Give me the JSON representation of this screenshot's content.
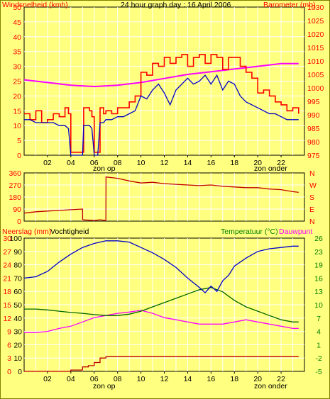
{
  "colors": {
    "background": "#FFFF80",
    "plot_bg": "#FFFF80",
    "grid": "#FFFFFF",
    "frame": "#000000",
    "wind_gust": "#FF0000",
    "wind_avg": "#0000C8",
    "barometer": "#FF00FF",
    "wind_dir": "#C00000",
    "rain": "#C00000",
    "humidity": "#0000C8",
    "temperature": "#006400",
    "dewpoint": "#FF00FF",
    "label_red": "#FF0000",
    "label_green": "#008000",
    "label_dark": "#000000"
  },
  "panel1": {
    "title": "24 hour graph day : 16 April 2006",
    "left_label": "Windsnelheid (kmh)",
    "right_label": "Barometer (mb)",
    "left_ticks": [
      "0",
      "5",
      "10",
      "15",
      "20",
      "25",
      "30",
      "35",
      "40",
      "45",
      "50"
    ],
    "right_ticks": [
      "975",
      "980",
      "985",
      "990",
      "995",
      "1000",
      "1005",
      "1010",
      "1015",
      "1020",
      "1025",
      "1030"
    ],
    "x_ticks": [
      "02",
      "04",
      "06",
      "08",
      "10",
      "12",
      "14",
      "16",
      "18",
      "20",
      "22"
    ],
    "sunrise_label": "zon op",
    "sunset_label": "zon onder"
  },
  "panel2": {
    "left_ticks": [
      "0",
      "90",
      "180",
      "270",
      "360"
    ],
    "compass": [
      "N",
      "W",
      "S",
      "E",
      "N"
    ]
  },
  "panel3": {
    "left_label_rain": "Neerslag (mm)",
    "left_label_hum": "Vochtigheid",
    "right_label_temp": "Temperatuur (°C)",
    "right_label_dew": "Dauwpunt",
    "rain_ticks": [
      "0",
      "3",
      "6",
      "9",
      "12",
      "15",
      "18",
      "21",
      "24",
      "27",
      "30"
    ],
    "hum_ticks": [
      "0",
      "10",
      "20",
      "30",
      "40",
      "50",
      "60",
      "70",
      "80",
      "90",
      "100"
    ],
    "right_ticks": [
      "-5",
      "-2",
      "1",
      "4",
      "7",
      "10",
      "13",
      "16",
      "19",
      "23",
      "26"
    ],
    "x_ticks": [
      "02",
      "04",
      "06",
      "08",
      "10",
      "12",
      "14",
      "16",
      "18",
      "20",
      "22"
    ],
    "sunrise_label": "zon op",
    "sunset_label": "zon onder"
  },
  "chart_data": [
    {
      "type": "line",
      "title": "24 hour graph day : 16 April 2006",
      "x_unit": "hour of day",
      "xlim": [
        0,
        24
      ],
      "ylabel": "Windsnelheid (kmh)",
      "ylim": [
        0,
        50
      ],
      "y2label": "Barometer (mb)",
      "y2lim": [
        975,
        1030
      ],
      "sunrise_hour": 6.5,
      "sunset_hour": 20.8,
      "series": [
        {
          "name": "wind gust",
          "axis": "left",
          "x": [
            0,
            0.5,
            1,
            1.5,
            2,
            2.5,
            3,
            3.5,
            3.8,
            4,
            5,
            5.1,
            5.6,
            5.8,
            6,
            6.3,
            6.5,
            6.8,
            7,
            7.5,
            8,
            8.5,
            9,
            9.5,
            10,
            10.5,
            11,
            11.5,
            12,
            12.5,
            13,
            13.5,
            14,
            14.5,
            15,
            15.5,
            16,
            16.5,
            17,
            17.5,
            18,
            18.5,
            19,
            19.5,
            20,
            20.5,
            21,
            21.5,
            22,
            22.5,
            23,
            23.5
          ],
          "values": [
            14,
            12,
            15,
            11,
            12,
            14,
            13,
            16,
            14,
            1,
            1,
            16,
            15,
            13,
            1,
            1,
            16,
            14,
            15,
            14,
            16,
            16,
            18,
            20,
            28,
            27,
            31,
            30,
            33,
            31,
            33,
            34,
            30,
            33,
            34,
            31,
            34,
            33,
            29,
            33,
            33,
            30,
            28,
            26,
            21,
            22,
            20,
            18,
            17,
            15,
            16,
            14
          ]
        },
        {
          "name": "wind avg",
          "axis": "left",
          "x": [
            0,
            0.5,
            1,
            1.5,
            2,
            2.5,
            3,
            3.5,
            3.8,
            4,
            5,
            5.1,
            5.6,
            5.8,
            6,
            6.3,
            6.5,
            6.8,
            7,
            7.5,
            8,
            8.5,
            9,
            9.5,
            10,
            10.5,
            11,
            11.5,
            12,
            12.5,
            13,
            13.5,
            14,
            14.5,
            15,
            15.5,
            16,
            16.5,
            17,
            17.5,
            18,
            18.5,
            19,
            19.5,
            20,
            20.5,
            21,
            21.5,
            22,
            22.5,
            23,
            23.5
          ],
          "values": [
            12,
            12,
            11,
            11,
            11,
            11,
            10,
            10,
            9,
            0,
            0,
            10,
            10,
            9,
            0,
            0,
            11,
            11,
            12,
            12,
            13,
            13,
            14,
            15,
            20,
            19,
            22,
            24,
            21,
            17,
            22,
            24,
            26,
            24,
            25,
            27,
            24,
            27,
            22,
            25,
            24,
            20,
            18,
            17,
            16,
            15,
            14,
            14,
            13,
            12,
            12,
            12
          ]
        },
        {
          "name": "barometer",
          "axis": "right",
          "x": [
            0,
            2,
            4,
            6,
            8,
            10,
            12,
            14,
            16,
            18,
            20,
            22,
            23.5
          ],
          "values": [
            1003,
            1002,
            1001,
            1000.5,
            1001,
            1002,
            1003.5,
            1005,
            1006,
            1007,
            1008,
            1009,
            1009
          ]
        }
      ]
    },
    {
      "type": "line",
      "x_unit": "hour of day",
      "xlim": [
        0,
        24
      ],
      "ylabel": "wind direction (degrees)",
      "ylim": [
        0,
        360
      ],
      "series": [
        {
          "name": "wind direction",
          "x": [
            0,
            1,
            2,
            3,
            4,
            5,
            5.01,
            6,
            6.5,
            7,
            7.01,
            8,
            9,
            10,
            11,
            12,
            13,
            14,
            15,
            16,
            17,
            18,
            19,
            20,
            21,
            22,
            23,
            23.5
          ],
          "values": [
            60,
            70,
            75,
            80,
            85,
            90,
            10,
            5,
            10,
            5,
            330,
            320,
            300,
            285,
            290,
            280,
            275,
            270,
            265,
            270,
            260,
            255,
            250,
            250,
            240,
            235,
            220,
            215
          ]
        }
      ]
    },
    {
      "type": "line",
      "x_unit": "hour of day",
      "xlim": [
        0,
        24
      ],
      "ylabel": "Neerslag (mm) / Vochtigheid",
      "ylim_rain": [
        0,
        30
      ],
      "ylim_hum": [
        0,
        100
      ],
      "y2label": "Temperatuur (°C) / Dauwpunt",
      "y2lim": [
        -5,
        26
      ],
      "sunrise_hour": 6.5,
      "sunset_hour": 20.8,
      "series": [
        {
          "name": "Vochtigheid",
          "axis": "left-humidity",
          "x": [
            0,
            1,
            2,
            3,
            4,
            5,
            6,
            7,
            8,
            9,
            10,
            11,
            12,
            13,
            14,
            15,
            15.5,
            16,
            16.5,
            17,
            17.5,
            18,
            19,
            20,
            21,
            22,
            23,
            23.5
          ],
          "values": [
            70,
            71,
            75,
            82,
            88,
            93,
            96,
            98,
            98,
            97,
            93,
            89,
            84,
            78,
            70,
            63,
            59,
            64,
            60,
            68,
            72,
            79,
            85,
            90,
            92,
            93,
            94,
            94
          ]
        },
        {
          "name": "Temperatuur",
          "axis": "right",
          "x": [
            0,
            1,
            2,
            3,
            4,
            5,
            6,
            7,
            8,
            9,
            10,
            11,
            12,
            13,
            14,
            15,
            16,
            17,
            18,
            19,
            20,
            21,
            22,
            23,
            23.5
          ],
          "values": [
            9.5,
            9.5,
            9.3,
            9,
            8.7,
            8.5,
            8.2,
            8,
            8,
            8.3,
            9,
            10,
            11,
            12,
            13,
            14,
            14.5,
            13.5,
            11.5,
            10,
            9,
            8,
            7,
            6.5,
            6.5
          ]
        },
        {
          "name": "Dauwpunt",
          "axis": "right",
          "x": [
            0,
            1,
            2,
            3,
            4,
            5,
            6,
            7,
            8,
            9,
            10,
            11,
            12,
            13,
            14,
            15,
            16,
            17,
            18,
            19,
            20,
            21,
            22,
            23,
            23.5
          ],
          "values": [
            4,
            4,
            4.3,
            5,
            5.5,
            6.5,
            7.5,
            8,
            8.5,
            8.8,
            9.2,
            8.5,
            7.5,
            7,
            6.5,
            6,
            6,
            6,
            6.5,
            7,
            6.5,
            6,
            5.5,
            5,
            5
          ]
        },
        {
          "name": "Neerslag",
          "axis": "left-rain",
          "x": [
            0,
            2,
            3,
            4,
            5,
            5.5,
            6,
            6.5,
            7,
            8,
            10,
            12,
            14,
            16,
            18,
            20,
            22,
            23.5
          ],
          "values": [
            0,
            0,
            0,
            0.3,
            1,
            1.3,
            2,
            3,
            3.3,
            3.3,
            3.3,
            3.3,
            3.3,
            3.3,
            3.3,
            3.3,
            3.3,
            3.3
          ]
        }
      ]
    }
  ]
}
